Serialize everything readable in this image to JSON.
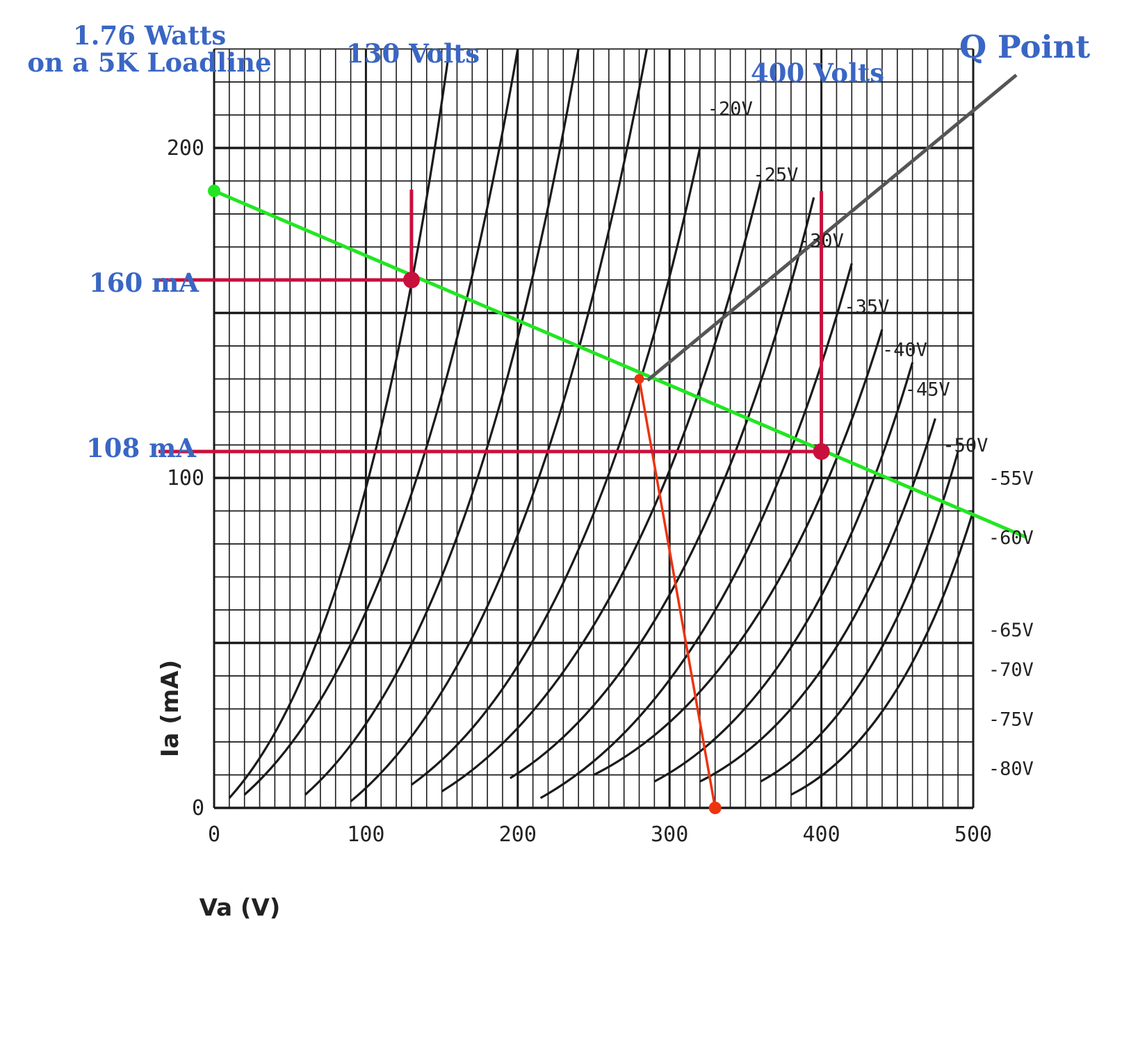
{
  "annotations": {
    "power": [
      "1.76 Watts",
      "on a 5K Loadline"
    ],
    "volts_low": "130 Volts",
    "volts_high": "400 Volts",
    "q_point": "Q Point",
    "ma_high": "160 mA",
    "ma_low": "108 mA"
  },
  "chart_data": {
    "type": "line",
    "xlabel": "Va (V)",
    "ylabel": "Ia (mA)",
    "xlim": [
      0,
      500
    ],
    "ylim": [
      0,
      230
    ],
    "x_ticks": [
      0,
      100,
      200,
      300,
      400,
      500
    ],
    "y_ticks": [
      0,
      100,
      200
    ],
    "grid": true,
    "series": [
      {
        "name": "-20V",
        "points": [
          [
            10,
            3
          ],
          [
            155,
            230
          ]
        ],
        "label_at": [
          325,
          210
        ]
      },
      {
        "name": "-25V",
        "points": [
          [
            20,
            4
          ],
          [
            200,
            230
          ]
        ],
        "label_at": [
          355,
          190
        ]
      },
      {
        "name": "-30V",
        "points": [
          [
            60,
            4
          ],
          [
            240,
            230
          ]
        ],
        "label_at": [
          385,
          170
        ]
      },
      {
        "name": "-35V",
        "points": [
          [
            90,
            2
          ],
          [
            285,
            230
          ]
        ],
        "label_at": [
          415,
          150
        ]
      },
      {
        "name": "-40V",
        "points": [
          [
            130,
            7
          ],
          [
            320,
            200
          ]
        ],
        "label_at": [
          440,
          137
        ]
      },
      {
        "name": "-45V",
        "points": [
          [
            150,
            5
          ],
          [
            360,
            190
          ]
        ],
        "label_at": [
          455,
          125
        ]
      },
      {
        "name": "-50V",
        "points": [
          [
            195,
            9
          ],
          [
            395,
            185
          ]
        ],
        "label_at": [
          480,
          108
        ]
      },
      {
        "name": "-55V",
        "points": [
          [
            215,
            3
          ],
          [
            420,
            165
          ]
        ],
        "label_at": [
          510,
          98
        ]
      },
      {
        "name": "-60V",
        "points": [
          [
            250,
            10
          ],
          [
            440,
            145
          ]
        ],
        "label_at": [
          510,
          80
        ]
      },
      {
        "name": "-65V",
        "points": [
          [
            290,
            8
          ],
          [
            460,
            135
          ]
        ],
        "label_at": [
          510,
          52
        ]
      },
      {
        "name": "-70V",
        "points": [
          [
            320,
            8
          ],
          [
            475,
            118
          ]
        ],
        "label_at": [
          510,
          40
        ]
      },
      {
        "name": "-75V",
        "points": [
          [
            360,
            8
          ],
          [
            490,
            108
          ]
        ],
        "label_at": [
          510,
          25
        ]
      },
      {
        "name": "-80V",
        "points": [
          [
            380,
            4
          ],
          [
            500,
            90
          ]
        ],
        "label_at": [
          510,
          10
        ]
      }
    ],
    "loadline": {
      "color": "#22e622",
      "points": [
        [
          0,
          187
        ],
        [
          535,
          82
        ]
      ]
    },
    "q_point": {
      "va": 280,
      "ia": 130
    },
    "bias_line": {
      "color": "#ee3311",
      "from": [
        280,
        130
      ],
      "to": [
        330,
        0
      ]
    },
    "swing_markers": {
      "color": "#c8103c",
      "low": {
        "va": 130,
        "ia": 160
      },
      "high": {
        "va": 400,
        "ia": 108
      }
    },
    "q_pointer": {
      "color": "#555555"
    }
  }
}
